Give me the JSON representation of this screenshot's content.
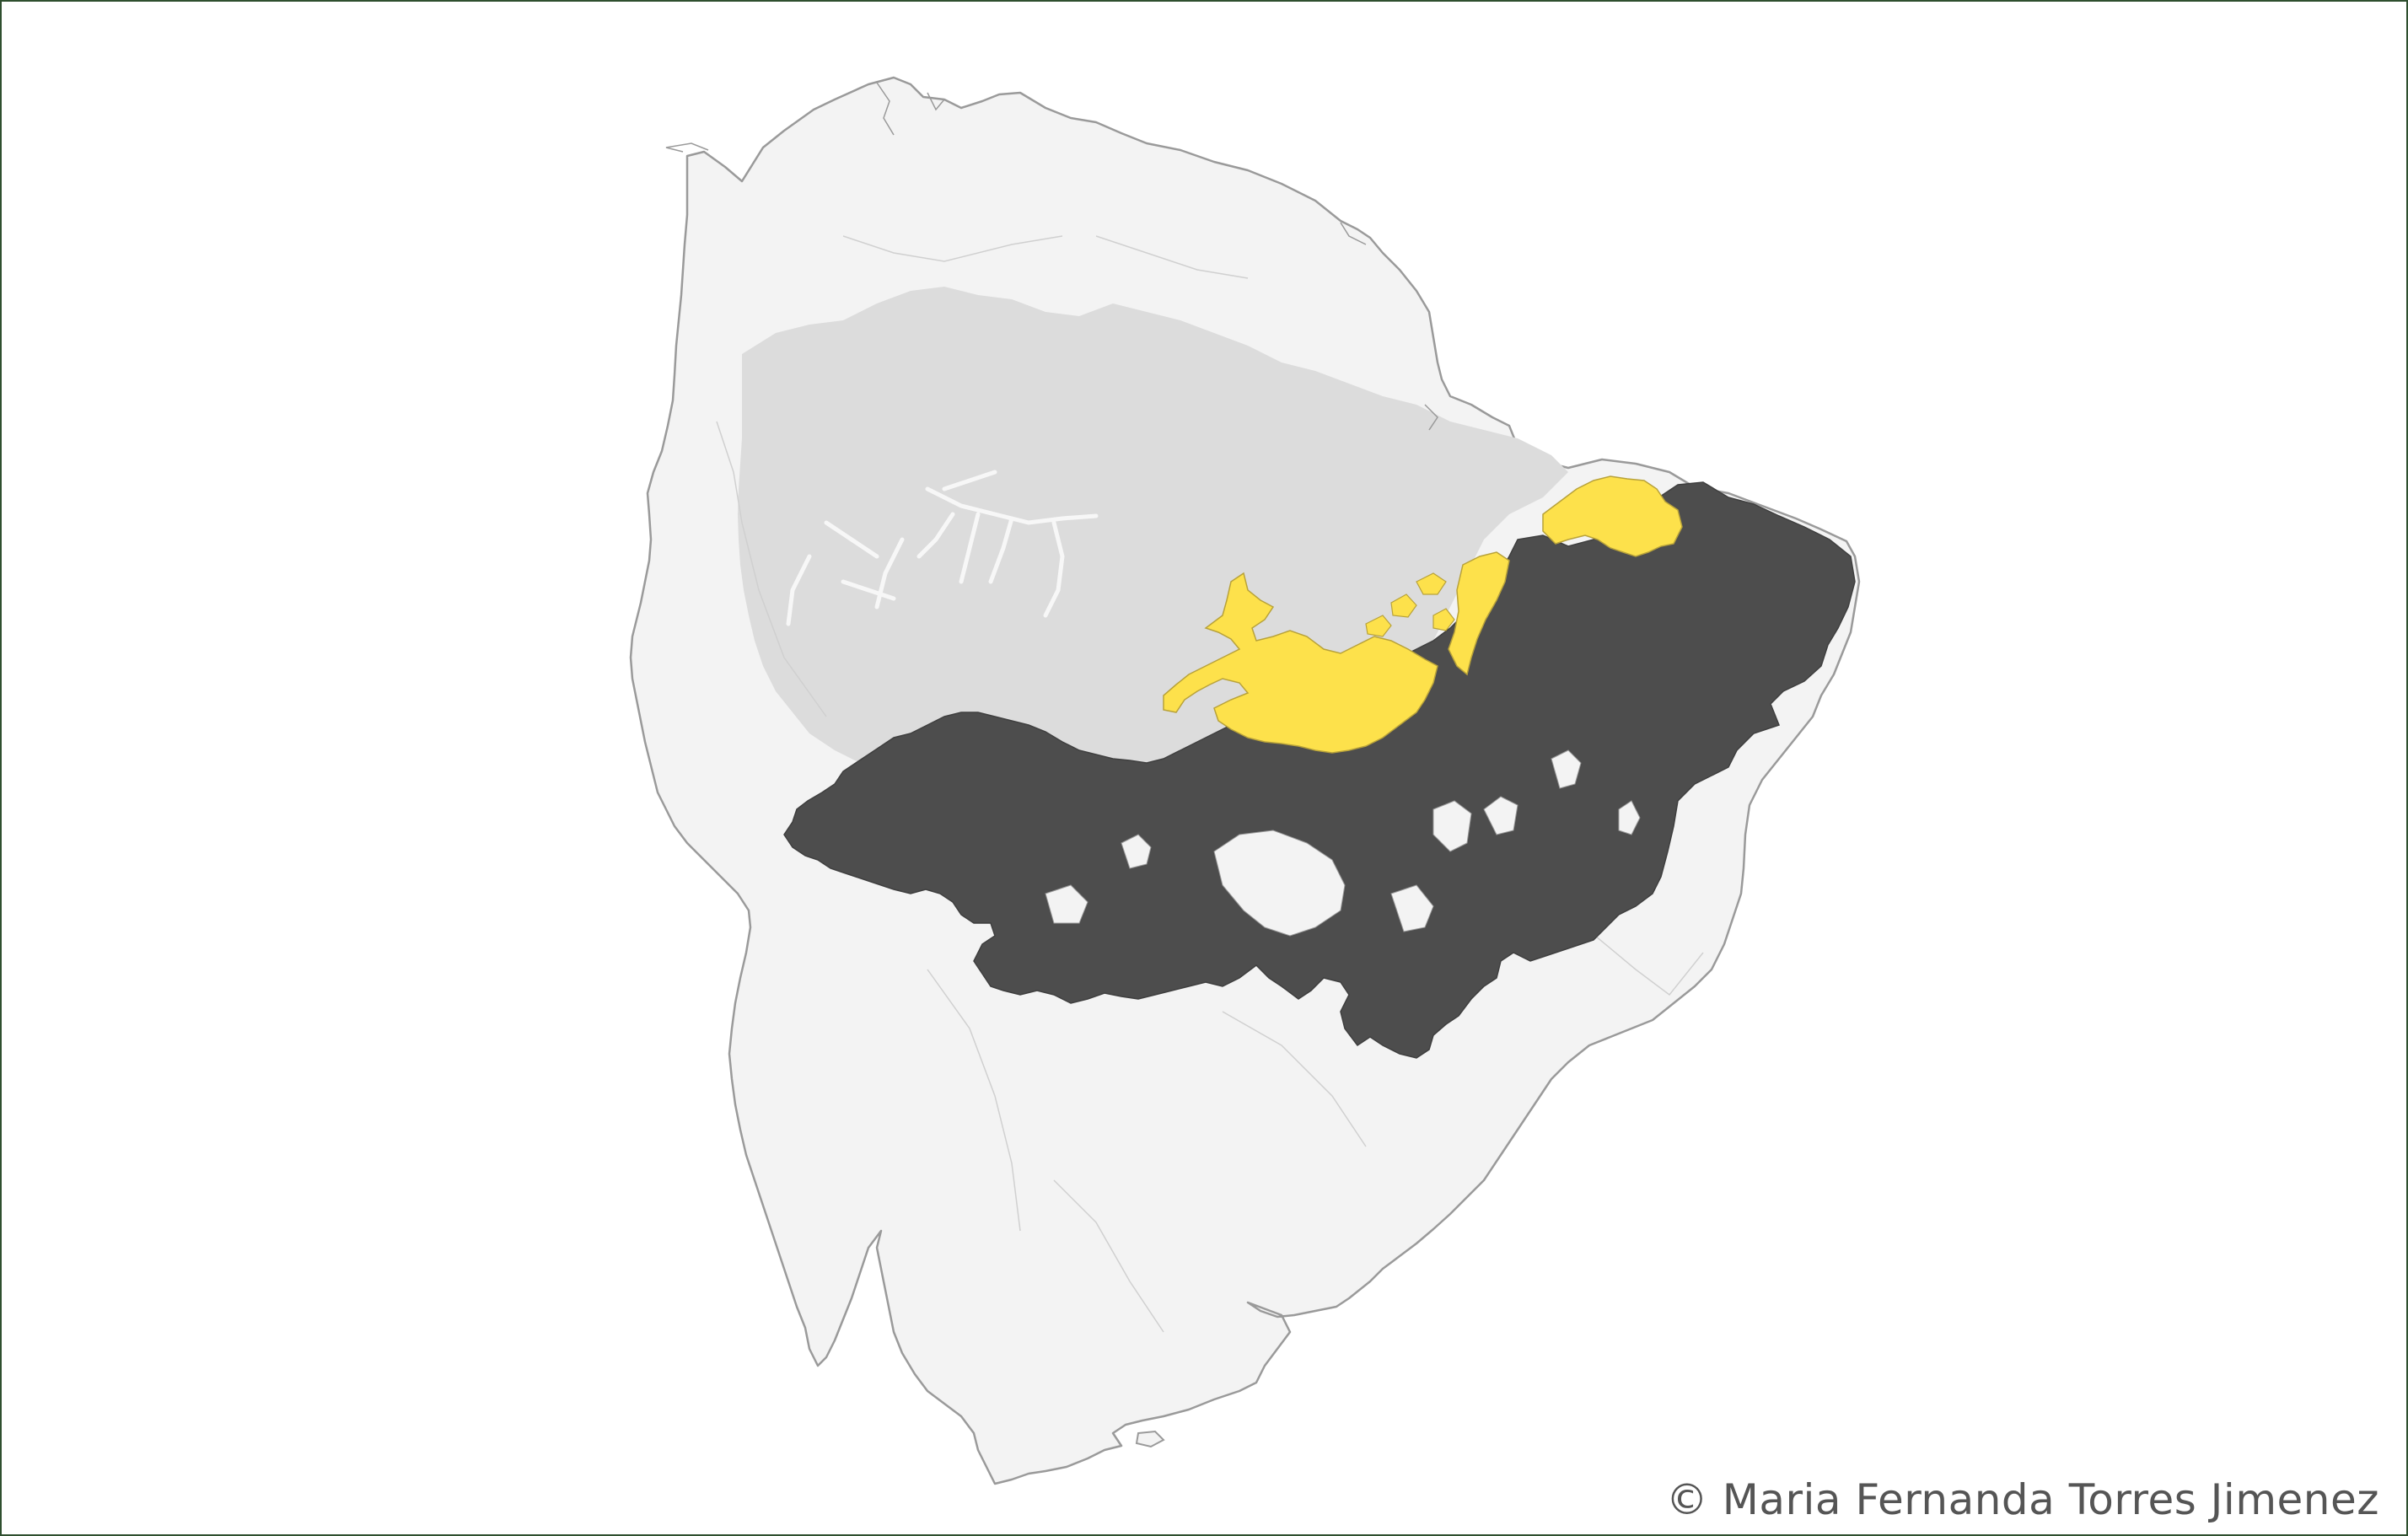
{
  "map": {
    "region": "South America",
    "colors": {
      "background": "#ffffff",
      "frame_border": "#2f4f2f",
      "continent_fill": "#f3f3f3",
      "continent_stroke": "#9a9a9a",
      "lowland_fill": "#dcdcdc",
      "internal_lines": "#d0d0d0",
      "primary_range": "#4d4d4d",
      "secondary_range": "#fde14b",
      "secondary_range_stroke": "#b8a23a"
    },
    "layers": [
      {
        "id": "primary-range",
        "color": "#4d4d4d"
      },
      {
        "id": "secondary-range",
        "color": "#fde14b"
      }
    ]
  },
  "credit": {
    "text": "© Maria Fernanda Torres Jimenez"
  }
}
